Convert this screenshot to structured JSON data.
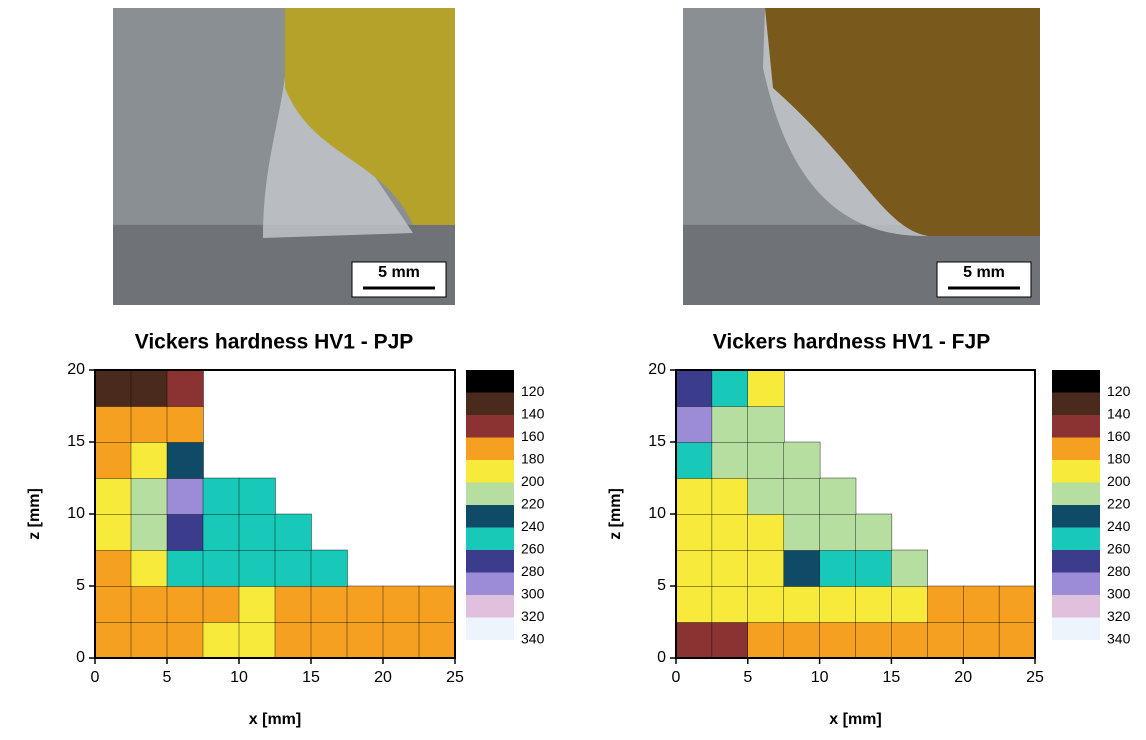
{
  "chart_data": [
    {
      "type": "contour",
      "title": "Vickers hardness HV1 - PJP",
      "scale_bar_label": "5 mm",
      "xlabel": "x [mm]",
      "ylabel": "z [mm]",
      "xlim": [
        0,
        25
      ],
      "ylim": [
        0,
        20
      ],
      "xticks": [
        0,
        5,
        10,
        15,
        20,
        25
      ],
      "yticks": [
        0,
        5,
        10,
        15,
        20
      ],
      "levels": [
        120,
        140,
        160,
        180,
        200,
        220,
        240,
        260,
        280,
        300,
        320,
        340
      ],
      "colors": [
        "#000000",
        "#4a2a1c",
        "#8b3232",
        "#f5a020",
        "#f7ea3a",
        "#b6dea0",
        "#0f4a66",
        "#18c8b8",
        "#3c3c8c",
        "#9c8cd8",
        "#e0c0dc",
        "#eef4fc"
      ],
      "x": [
        1.25,
        3.75,
        6.25,
        8.75,
        11.25,
        13.75,
        16.25,
        18.75,
        21.25,
        23.75
      ],
      "z": [
        1.25,
        3.75,
        6.25,
        8.75,
        11.25,
        13.75,
        16.25,
        18.75
      ],
      "values": [
        [
          170,
          170,
          175,
          180,
          185,
          175,
          170,
          170,
          170,
          170
        ],
        [
          170,
          170,
          170,
          175,
          180,
          175,
          170,
          170,
          170,
          170
        ],
        [
          175,
          190,
          250,
          250,
          240,
          240,
          250,
          null,
          null,
          null
        ],
        [
          180,
          200,
          270,
          240,
          240,
          240,
          null,
          null,
          null,
          null
        ],
        [
          180,
          210,
          280,
          240,
          240,
          null,
          null,
          null,
          null,
          null
        ],
        [
          175,
          185,
          230,
          null,
          null,
          null,
          null,
          null,
          null,
          null
        ],
        [
          160,
          165,
          170,
          null,
          null,
          null,
          null,
          null,
          null,
          null
        ],
        [
          130,
          130,
          140,
          null,
          null,
          null,
          null,
          null,
          null,
          null
        ]
      ]
    },
    {
      "type": "contour",
      "title": "Vickers hardness HV1 - FJP",
      "scale_bar_label": "5 mm",
      "xlabel": "x [mm]",
      "ylabel": "z [mm]",
      "xlim": [
        0,
        25
      ],
      "ylim": [
        0,
        20
      ],
      "xticks": [
        0,
        5,
        10,
        15,
        20,
        25
      ],
      "yticks": [
        0,
        5,
        10,
        15,
        20
      ],
      "levels": [
        120,
        140,
        160,
        180,
        200,
        220,
        240,
        260,
        280,
        300,
        320,
        340
      ],
      "colors": [
        "#000000",
        "#4a2a1c",
        "#8b3232",
        "#f5a020",
        "#f7ea3a",
        "#b6dea0",
        "#0f4a66",
        "#18c8b8",
        "#3c3c8c",
        "#9c8cd8",
        "#e0c0dc",
        "#eef4fc"
      ],
      "x": [
        1.25,
        3.75,
        6.25,
        8.75,
        11.25,
        13.75,
        16.25,
        18.75,
        21.25,
        23.75
      ],
      "z": [
        1.25,
        3.75,
        6.25,
        8.75,
        11.25,
        13.75,
        16.25,
        18.75
      ],
      "values": [
        [
          150,
          150,
          160,
          170,
          170,
          170,
          170,
          170,
          170,
          170
        ],
        [
          190,
          190,
          190,
          180,
          190,
          180,
          180,
          170,
          170,
          170
        ],
        [
          180,
          180,
          195,
          220,
          250,
          240,
          210,
          null,
          null,
          null
        ],
        [
          190,
          190,
          195,
          200,
          210,
          210,
          null,
          null,
          null,
          null
        ],
        [
          195,
          190,
          200,
          210,
          210,
          null,
          null,
          null,
          null,
          null
        ],
        [
          250,
          200,
          200,
          205,
          null,
          null,
          null,
          null,
          null,
          null
        ],
        [
          280,
          210,
          200,
          null,
          null,
          null,
          null,
          null,
          null,
          null
        ],
        [
          260,
          240,
          190,
          null,
          null,
          null,
          null,
          null,
          null,
          null
        ]
      ]
    }
  ]
}
